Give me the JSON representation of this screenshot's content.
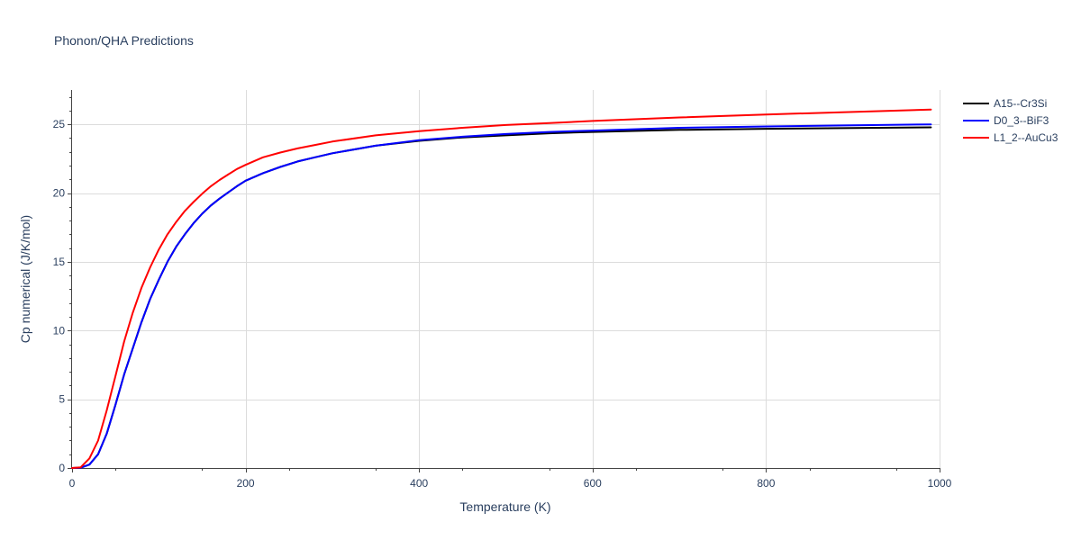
{
  "chart_data": {
    "type": "line",
    "title": "Phonon/QHA Predictions",
    "xlabel": "Temperature (K)",
    "ylabel": "Cp numerical (J/K/mol)",
    "xlim": [
      0,
      1000
    ],
    "ylim": [
      0,
      27.5
    ],
    "x_ticks": [
      0,
      200,
      400,
      600,
      800,
      1000
    ],
    "x_tick_labels": [
      "0",
      "200",
      "400",
      "600",
      "800",
      "1000"
    ],
    "y_ticks": [
      0,
      5,
      10,
      15,
      20,
      25
    ],
    "y_tick_labels": [
      "0",
      "5",
      "10",
      "15",
      "20",
      "25"
    ],
    "grid": true,
    "legend_position": "top-right",
    "series": [
      {
        "name": "A15--Cr3Si",
        "color": "#000000",
        "points": [
          [
            0,
            0
          ],
          [
            10,
            0.02
          ],
          [
            20,
            0.25
          ],
          [
            30,
            1.0
          ],
          [
            40,
            2.5
          ],
          [
            50,
            4.6
          ],
          [
            60,
            6.8
          ],
          [
            70,
            8.7
          ],
          [
            80,
            10.6
          ],
          [
            90,
            12.3
          ],
          [
            100,
            13.7
          ],
          [
            110,
            15.0
          ],
          [
            120,
            16.1
          ],
          [
            130,
            17.0
          ],
          [
            140,
            17.8
          ],
          [
            150,
            18.5
          ],
          [
            160,
            19.1
          ],
          [
            170,
            19.6
          ],
          [
            180,
            20.05
          ],
          [
            190,
            20.5
          ],
          [
            200,
            20.9
          ],
          [
            220,
            21.45
          ],
          [
            240,
            21.9
          ],
          [
            260,
            22.3
          ],
          [
            280,
            22.6
          ],
          [
            300,
            22.9
          ],
          [
            350,
            23.45
          ],
          [
            400,
            23.8
          ],
          [
            450,
            24.05
          ],
          [
            500,
            24.2
          ],
          [
            550,
            24.35
          ],
          [
            600,
            24.45
          ],
          [
            700,
            24.6
          ],
          [
            800,
            24.68
          ],
          [
            900,
            24.73
          ],
          [
            990,
            24.78
          ]
        ]
      },
      {
        "name": "D0_3--BiF3",
        "color": "#0000ff",
        "points": [
          [
            0,
            0
          ],
          [
            10,
            0.02
          ],
          [
            20,
            0.25
          ],
          [
            30,
            1.0
          ],
          [
            40,
            2.5
          ],
          [
            50,
            4.6
          ],
          [
            60,
            6.8
          ],
          [
            70,
            8.7
          ],
          [
            80,
            10.6
          ],
          [
            90,
            12.3
          ],
          [
            100,
            13.7
          ],
          [
            110,
            15.0
          ],
          [
            120,
            16.1
          ],
          [
            130,
            17.0
          ],
          [
            140,
            17.8
          ],
          [
            150,
            18.5
          ],
          [
            160,
            19.1
          ],
          [
            170,
            19.6
          ],
          [
            180,
            20.05
          ],
          [
            190,
            20.5
          ],
          [
            200,
            20.9
          ],
          [
            220,
            21.45
          ],
          [
            240,
            21.9
          ],
          [
            260,
            22.3
          ],
          [
            280,
            22.6
          ],
          [
            300,
            22.9
          ],
          [
            350,
            23.45
          ],
          [
            400,
            23.85
          ],
          [
            450,
            24.1
          ],
          [
            500,
            24.3
          ],
          [
            550,
            24.45
          ],
          [
            600,
            24.55
          ],
          [
            700,
            24.75
          ],
          [
            800,
            24.85
          ],
          [
            900,
            24.93
          ],
          [
            990,
            25.0
          ]
        ]
      },
      {
        "name": "L1_2--AuCu3",
        "color": "#ff0000",
        "points": [
          [
            0,
            0
          ],
          [
            10,
            0.05
          ],
          [
            20,
            0.7
          ],
          [
            30,
            2.0
          ],
          [
            40,
            4.2
          ],
          [
            50,
            6.7
          ],
          [
            60,
            9.2
          ],
          [
            70,
            11.3
          ],
          [
            80,
            13.1
          ],
          [
            90,
            14.6
          ],
          [
            100,
            15.9
          ],
          [
            110,
            17.0
          ],
          [
            120,
            17.9
          ],
          [
            130,
            18.7
          ],
          [
            140,
            19.35
          ],
          [
            150,
            19.95
          ],
          [
            160,
            20.5
          ],
          [
            170,
            20.95
          ],
          [
            180,
            21.35
          ],
          [
            190,
            21.75
          ],
          [
            200,
            22.05
          ],
          [
            220,
            22.6
          ],
          [
            240,
            22.95
          ],
          [
            260,
            23.25
          ],
          [
            280,
            23.5
          ],
          [
            300,
            23.75
          ],
          [
            350,
            24.2
          ],
          [
            400,
            24.5
          ],
          [
            450,
            24.75
          ],
          [
            500,
            24.95
          ],
          [
            550,
            25.1
          ],
          [
            600,
            25.25
          ],
          [
            700,
            25.5
          ],
          [
            800,
            25.72
          ],
          [
            900,
            25.9
          ],
          [
            990,
            26.08
          ]
        ]
      }
    ]
  }
}
